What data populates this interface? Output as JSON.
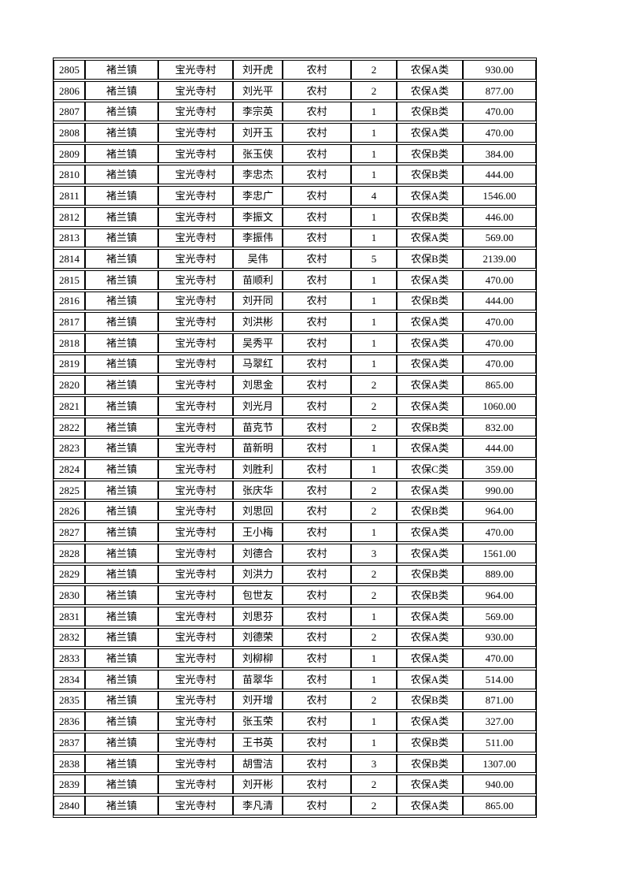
{
  "page": {
    "background_color": "#ffffff",
    "text_color": "#000000",
    "border_color": "#000000"
  },
  "table": {
    "column_names": [
      "seq",
      "town",
      "village",
      "name",
      "area-type",
      "person-count",
      "insurance-category",
      "amount"
    ],
    "rows": [
      [
        "2805",
        "褚兰镇",
        "宝光寺村",
        "刘开虎",
        "农村",
        "2",
        "农保A类",
        "930.00"
      ],
      [
        "2806",
        "褚兰镇",
        "宝光寺村",
        "刘光平",
        "农村",
        "2",
        "农保A类",
        "877.00"
      ],
      [
        "2807",
        "褚兰镇",
        "宝光寺村",
        "李宗英",
        "农村",
        "1",
        "农保B类",
        "470.00"
      ],
      [
        "2808",
        "褚兰镇",
        "宝光寺村",
        "刘开玉",
        "农村",
        "1",
        "农保A类",
        "470.00"
      ],
      [
        "2809",
        "褚兰镇",
        "宝光寺村",
        "张玉侠",
        "农村",
        "1",
        "农保B类",
        "384.00"
      ],
      [
        "2810",
        "褚兰镇",
        "宝光寺村",
        "李忠杰",
        "农村",
        "1",
        "农保B类",
        "444.00"
      ],
      [
        "2811",
        "褚兰镇",
        "宝光寺村",
        "李忠广",
        "农村",
        "4",
        "农保A类",
        "1546.00"
      ],
      [
        "2812",
        "褚兰镇",
        "宝光寺村",
        "李振文",
        "农村",
        "1",
        "农保B类",
        "446.00"
      ],
      [
        "2813",
        "褚兰镇",
        "宝光寺村",
        "李振伟",
        "农村",
        "1",
        "农保A类",
        "569.00"
      ],
      [
        "2814",
        "褚兰镇",
        "宝光寺村",
        "吴伟",
        "农村",
        "5",
        "农保B类",
        "2139.00"
      ],
      [
        "2815",
        "褚兰镇",
        "宝光寺村",
        "苗顺利",
        "农村",
        "1",
        "农保A类",
        "470.00"
      ],
      [
        "2816",
        "褚兰镇",
        "宝光寺村",
        "刘开同",
        "农村",
        "1",
        "农保B类",
        "444.00"
      ],
      [
        "2817",
        "褚兰镇",
        "宝光寺村",
        "刘洪彬",
        "农村",
        "1",
        "农保A类",
        "470.00"
      ],
      [
        "2818",
        "褚兰镇",
        "宝光寺村",
        "吴秀平",
        "农村",
        "1",
        "农保A类",
        "470.00"
      ],
      [
        "2819",
        "褚兰镇",
        "宝光寺村",
        "马翠红",
        "农村",
        "1",
        "农保A类",
        "470.00"
      ],
      [
        "2820",
        "褚兰镇",
        "宝光寺村",
        "刘思金",
        "农村",
        "2",
        "农保A类",
        "865.00"
      ],
      [
        "2821",
        "褚兰镇",
        "宝光寺村",
        "刘光月",
        "农村",
        "2",
        "农保A类",
        "1060.00"
      ],
      [
        "2822",
        "褚兰镇",
        "宝光寺村",
        "苗克节",
        "农村",
        "2",
        "农保B类",
        "832.00"
      ],
      [
        "2823",
        "褚兰镇",
        "宝光寺村",
        "苗新明",
        "农村",
        "1",
        "农保A类",
        "444.00"
      ],
      [
        "2824",
        "褚兰镇",
        "宝光寺村",
        "刘胜利",
        "农村",
        "1",
        "农保C类",
        "359.00"
      ],
      [
        "2825",
        "褚兰镇",
        "宝光寺村",
        "张庆华",
        "农村",
        "2",
        "农保A类",
        "990.00"
      ],
      [
        "2826",
        "褚兰镇",
        "宝光寺村",
        "刘思回",
        "农村",
        "2",
        "农保B类",
        "964.00"
      ],
      [
        "2827",
        "褚兰镇",
        "宝光寺村",
        "王小梅",
        "农村",
        "1",
        "农保A类",
        "470.00"
      ],
      [
        "2828",
        "褚兰镇",
        "宝光寺村",
        "刘德合",
        "农村",
        "3",
        "农保A类",
        "1561.00"
      ],
      [
        "2829",
        "褚兰镇",
        "宝光寺村",
        "刘洪力",
        "农村",
        "2",
        "农保B类",
        "889.00"
      ],
      [
        "2830",
        "褚兰镇",
        "宝光寺村",
        "包世友",
        "农村",
        "2",
        "农保B类",
        "964.00"
      ],
      [
        "2831",
        "褚兰镇",
        "宝光寺村",
        "刘思芬",
        "农村",
        "1",
        "农保A类",
        "569.00"
      ],
      [
        "2832",
        "褚兰镇",
        "宝光寺村",
        "刘德荣",
        "农村",
        "2",
        "农保A类",
        "930.00"
      ],
      [
        "2833",
        "褚兰镇",
        "宝光寺村",
        "刘柳柳",
        "农村",
        "1",
        "农保A类",
        "470.00"
      ],
      [
        "2834",
        "褚兰镇",
        "宝光寺村",
        "苗翠华",
        "农村",
        "1",
        "农保A类",
        "514.00"
      ],
      [
        "2835",
        "褚兰镇",
        "宝光寺村",
        "刘开增",
        "农村",
        "2",
        "农保B类",
        "871.00"
      ],
      [
        "2836",
        "褚兰镇",
        "宝光寺村",
        "张玉荣",
        "农村",
        "1",
        "农保A类",
        "327.00"
      ],
      [
        "2837",
        "褚兰镇",
        "宝光寺村",
        "王书英",
        "农村",
        "1",
        "农保B类",
        "511.00"
      ],
      [
        "2838",
        "褚兰镇",
        "宝光寺村",
        "胡雪洁",
        "农村",
        "3",
        "农保B类",
        "1307.00"
      ],
      [
        "2839",
        "褚兰镇",
        "宝光寺村",
        "刘开彬",
        "农村",
        "2",
        "农保A类",
        "940.00"
      ],
      [
        "2840",
        "褚兰镇",
        "宝光寺村",
        "李凡清",
        "农村",
        "2",
        "农保A类",
        "865.00"
      ]
    ]
  }
}
